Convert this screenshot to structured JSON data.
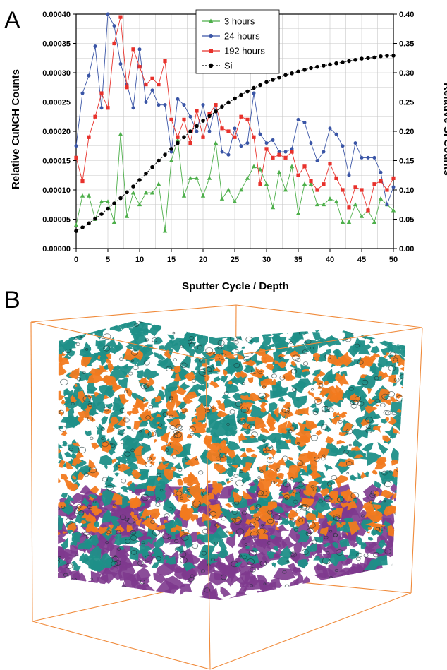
{
  "panels": {
    "a": "A",
    "b": "B"
  },
  "chart_data": {
    "type": "line",
    "xlabel": "Sputter Cycle / Depth",
    "ylabel": "Relative CuNCH Counts",
    "y2label": "Relative Si Counts",
    "xlim": [
      0,
      50
    ],
    "ylim": [
      0,
      0.0004
    ],
    "y2lim": [
      0,
      0.4
    ],
    "xticks": [
      "0",
      "5",
      "10",
      "15",
      "20",
      "25",
      "30",
      "35",
      "40",
      "45",
      "50"
    ],
    "yticks": [
      "0.00000",
      "0.00005",
      "0.00010",
      "0.00015",
      "0.00020",
      "0.00025",
      "0.00030",
      "0.00035",
      "0.00040"
    ],
    "y2ticks": [
      "0.00",
      "0.05",
      "0.10",
      "0.15",
      "0.20",
      "0.25",
      "0.30",
      "0.35",
      "0.40"
    ],
    "grid": true,
    "legend_position": "top-center",
    "series": [
      {
        "name": "3 hours",
        "axis": "left",
        "color": "#4daf4a",
        "marker": "triangle",
        "x": [
          0,
          1,
          2,
          3,
          4,
          5,
          6,
          7,
          8,
          9,
          10,
          11,
          12,
          13,
          14,
          15,
          16,
          17,
          18,
          19,
          20,
          21,
          22,
          23,
          24,
          25,
          26,
          27,
          28,
          29,
          30,
          31,
          32,
          33,
          34,
          35,
          36,
          37,
          38,
          39,
          40,
          41,
          42,
          43,
          44,
          45,
          46,
          47,
          48,
          49,
          50
        ],
        "y": [
          4e-05,
          9e-05,
          9e-05,
          5e-05,
          8e-05,
          8e-05,
          4.5e-05,
          0.000195,
          5.5e-05,
          9.5e-05,
          7.5e-05,
          9.5e-05,
          9.5e-05,
          0.00011,
          3e-05,
          0.00015,
          0.000185,
          9e-05,
          0.00012,
          0.00012,
          9e-05,
          0.00012,
          0.00018,
          8.5e-05,
          0.0001,
          8e-05,
          0.0001,
          0.00012,
          0.00014,
          0.000135,
          0.00011,
          7e-05,
          0.00013,
          0.0001,
          0.00014,
          6e-05,
          0.00011,
          0.00011,
          7.5e-05,
          7.5e-05,
          8.5e-05,
          8e-05,
          4.5e-05,
          4.5e-05,
          7.5e-05,
          5.5e-05,
          6.5e-05,
          4.5e-05,
          8.5e-05,
          7.5e-05,
          6.5e-05
        ]
      },
      {
        "name": "24 hours",
        "axis": "left",
        "color": "#3a55a6",
        "marker": "circle",
        "x": [
          0,
          1,
          2,
          3,
          4,
          5,
          6,
          7,
          8,
          9,
          10,
          11,
          12,
          13,
          14,
          15,
          16,
          17,
          18,
          19,
          20,
          21,
          22,
          23,
          24,
          25,
          26,
          27,
          28,
          29,
          30,
          31,
          32,
          33,
          34,
          35,
          36,
          37,
          38,
          39,
          40,
          41,
          42,
          43,
          44,
          45,
          46,
          47,
          48,
          49,
          50
        ],
        "y": [
          0.000175,
          0.000265,
          0.000295,
          0.000345,
          0.00024,
          0.0004,
          0.00038,
          0.000315,
          0.00028,
          0.00024,
          0.00034,
          0.00025,
          0.00027,
          0.000245,
          0.000245,
          0.000165,
          0.000255,
          0.000245,
          0.000225,
          0.0002,
          0.000245,
          0.0002,
          0.000245,
          0.000165,
          0.00016,
          0.000205,
          0.000175,
          0.00018,
          0.000265,
          0.000195,
          0.00018,
          0.000185,
          0.000165,
          0.000165,
          0.00017,
          0.00022,
          0.000215,
          0.00018,
          0.00015,
          0.000165,
          0.000205,
          0.000195,
          0.000175,
          0.000125,
          0.00018,
          0.000155,
          0.000155,
          0.000155,
          0.00013,
          7.5e-05,
          0.000105
        ]
      },
      {
        "name": "192 hours",
        "axis": "left",
        "color": "#e8312b",
        "marker": "square",
        "x": [
          0,
          1,
          2,
          3,
          4,
          5,
          6,
          7,
          8,
          9,
          10,
          11,
          12,
          13,
          14,
          15,
          16,
          17,
          18,
          19,
          20,
          21,
          22,
          23,
          24,
          25,
          26,
          27,
          28,
          29,
          30,
          31,
          32,
          33,
          34,
          35,
          36,
          37,
          38,
          39,
          40,
          41,
          42,
          43,
          44,
          45,
          46,
          47,
          48,
          49,
          50
        ],
        "y": [
          0.000155,
          0.000115,
          0.00019,
          0.000225,
          0.000265,
          0.00024,
          0.00035,
          0.000395,
          0.000275,
          0.00034,
          0.00031,
          0.00028,
          0.00029,
          0.00028,
          0.00032,
          0.00022,
          0.00019,
          0.00022,
          0.00018,
          0.000235,
          0.00019,
          0.00023,
          0.000245,
          0.000205,
          0.0002,
          0.00019,
          0.000225,
          0.00022,
          0.00019,
          0.00011,
          0.00017,
          0.000155,
          0.00016,
          0.000155,
          0.000165,
          0.000125,
          0.00014,
          0.000115,
          0.0001,
          0.00011,
          0.000145,
          0.00012,
          0.0001,
          7e-05,
          0.000105,
          0.0001,
          6.5e-05,
          0.00011,
          0.000115,
          0.0001,
          0.00012
        ]
      },
      {
        "name": "Si",
        "axis": "right",
        "color": "#000000",
        "marker": "circle",
        "x": [
          0,
          1,
          2,
          3,
          4,
          5,
          6,
          7,
          8,
          9,
          10,
          11,
          12,
          13,
          14,
          15,
          16,
          17,
          18,
          19,
          20,
          21,
          22,
          23,
          24,
          25,
          26,
          27,
          28,
          29,
          30,
          31,
          32,
          33,
          34,
          35,
          36,
          37,
          38,
          39,
          40,
          41,
          42,
          43,
          44,
          45,
          46,
          47,
          48,
          49,
          50
        ],
        "y": [
          0.03,
          0.036,
          0.043,
          0.051,
          0.059,
          0.068,
          0.077,
          0.086,
          0.096,
          0.106,
          0.117,
          0.128,
          0.139,
          0.15,
          0.16,
          0.17,
          0.18,
          0.19,
          0.2,
          0.209,
          0.218,
          0.226,
          0.234,
          0.242,
          0.249,
          0.256,
          0.262,
          0.268,
          0.274,
          0.279,
          0.284,
          0.288,
          0.292,
          0.296,
          0.299,
          0.302,
          0.305,
          0.308,
          0.31,
          0.312,
          0.314,
          0.316,
          0.318,
          0.32,
          0.322,
          0.324,
          0.325,
          0.326,
          0.328,
          0.329,
          0.329
        ]
      }
    ]
  },
  "render3d": {
    "box_color": "#f08a3a",
    "colors": {
      "teal": "#1f8f88",
      "orange": "#f27a1f",
      "purple": "#7e3a8e"
    }
  }
}
